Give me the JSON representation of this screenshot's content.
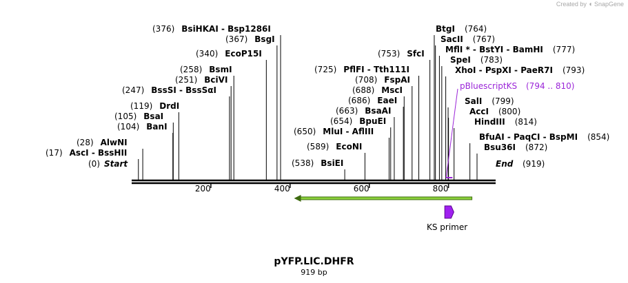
{
  "credit": {
    "prefix": "Created by",
    "brand": "SnapGene"
  },
  "map": {
    "name": "pYFP.LIC.DHFR",
    "length_label": "919 bp",
    "length": 919,
    "start_label": "Start",
    "end_label": "End",
    "start_pos_label": "(0)",
    "end_pos_label": "(919)",
    "ticks": [
      200,
      400,
      600,
      800
    ]
  },
  "sites": [
    {
      "pos": 17,
      "pos_label": "(17)",
      "name": "AscI  -  BssHII"
    },
    {
      "pos": 28,
      "pos_label": "(28)",
      "name": "AlwNI"
    },
    {
      "pos": 104,
      "pos_label": "(104)",
      "name": "BanI"
    },
    {
      "pos": 105,
      "pos_label": "(105)",
      "name": "BsaI"
    },
    {
      "pos": 119,
      "pos_label": "(119)",
      "name": "DrdI"
    },
    {
      "pos": 247,
      "pos_label": "(247)",
      "name": "BssSI  -  BssSαI"
    },
    {
      "pos": 251,
      "pos_label": "(251)",
      "name": "BciVI"
    },
    {
      "pos": 258,
      "pos_label": "(258)",
      "name": "BsmI"
    },
    {
      "pos": 340,
      "pos_label": "(340)",
      "name": "EcoP15I"
    },
    {
      "pos": 367,
      "pos_label": "(367)",
      "name": "BsgI"
    },
    {
      "pos": 376,
      "pos_label": "(376)",
      "name": "BsiHKAI  -  Bsp1286I"
    },
    {
      "pos": 538,
      "pos_label": "(538)",
      "name": "BsiEI"
    },
    {
      "pos": 589,
      "pos_label": "(589)",
      "name": "EcoNI"
    },
    {
      "pos": 650,
      "pos_label": "(650)",
      "name": "MluI  -  AflIII"
    },
    {
      "pos": 654,
      "pos_label": "(654)",
      "name": "BpuEI"
    },
    {
      "pos": 663,
      "pos_label": "(663)",
      "name": "BsaAI"
    },
    {
      "pos": 686,
      "pos_label": "(686)",
      "name": "EaeI"
    },
    {
      "pos": 688,
      "pos_label": "(688)",
      "name": "MscI"
    },
    {
      "pos": 708,
      "pos_label": "(708)",
      "name": "FspAI"
    },
    {
      "pos": 725,
      "pos_label": "(725)",
      "name": "PflFI  -  Tth111I"
    },
    {
      "pos": 753,
      "pos_label": "(753)",
      "name": "SfcI"
    },
    {
      "pos": 764,
      "pos_label": "(764)",
      "name": "BtgI"
    },
    {
      "pos": 767,
      "pos_label": "(767)",
      "name": "SacII"
    },
    {
      "pos": 777,
      "pos_label": "(777)",
      "name": "MflI *  -  BstYI  -  BamHI"
    },
    {
      "pos": 783,
      "pos_label": "(783)",
      "name": "SpeI"
    },
    {
      "pos": 793,
      "pos_label": "(793)",
      "name": "XhoI  -  PspXI  -  PaeR7I"
    },
    {
      "pos": 799,
      "pos_label": "(799)",
      "name": "SalI"
    },
    {
      "pos": 800,
      "pos_label": "(800)",
      "name": "AccI"
    },
    {
      "pos": 814,
      "pos_label": "(814)",
      "name": "HindIII"
    },
    {
      "pos": 854,
      "pos_label": "(854)",
      "name": "BfuAI  -  PaqCI  -  BspMI"
    },
    {
      "pos": 872,
      "pos_label": "(872)",
      "name": "Bsu36I"
    }
  ],
  "primer": {
    "name": "pBluescriptKS",
    "range_label": "(794 .. 810)",
    "start": 794,
    "end": 810,
    "color": "#9b25d8"
  },
  "features": [
    {
      "name": "",
      "start": 410,
      "end": 860,
      "direction": "reverse",
      "color": "#8bd13b"
    },
    {
      "name": "KS primer",
      "start": 794,
      "end": 810,
      "direction": "forward",
      "color": "#a020f0"
    }
  ]
}
